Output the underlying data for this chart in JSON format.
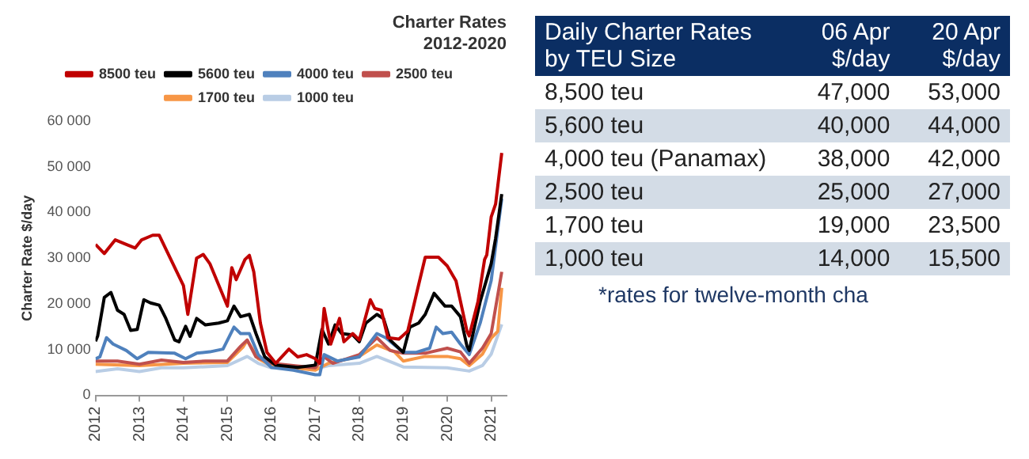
{
  "chart_data": [
    {
      "type": "line",
      "title": "Charter Rates",
      "subtitle": "2012-2020",
      "ylabel": "Charter Rate $/day",
      "xlim": [
        2012,
        2021.35
      ],
      "xticks": [
        2012,
        2013,
        2014,
        2015,
        2016,
        2017,
        2018,
        2019,
        2020,
        2021
      ],
      "ylim": [
        0,
        60000
      ],
      "yticks": [
        0,
        {
          "value": 10000,
          "label": "10 000"
        },
        {
          "value": 20000,
          "label": "20 000"
        },
        {
          "value": 30000,
          "label": "30 000"
        },
        {
          "value": 40000,
          "label": "40 000"
        },
        {
          "value": 50000,
          "label": "50 000"
        },
        {
          "value": 60000,
          "label": "60 000"
        }
      ],
      "grid": false,
      "legend": "top",
      "marker": "none",
      "line_style": "solid",
      "series": [
        {
          "name": "8500 teu",
          "color": "#c00000",
          "x": [
            2012.0,
            2012.2,
            2012.45,
            2012.7,
            2012.9,
            2013.05,
            2013.3,
            2013.45,
            2014.0,
            2014.1,
            2014.3,
            2014.45,
            2014.6,
            2015.0,
            2015.1,
            2015.2,
            2015.4,
            2015.5,
            2015.6,
            2015.75,
            2015.9,
            2016.1,
            2016.4,
            2016.6,
            2016.8,
            2017.0,
            2017.1,
            2017.2,
            2017.35,
            2017.55,
            2017.65,
            2017.85,
            2018.0,
            2018.25,
            2018.35,
            2018.5,
            2018.65,
            2018.9,
            2019.1,
            2019.35,
            2019.5,
            2019.8,
            2020.0,
            2020.2,
            2020.45,
            2020.5,
            2020.7,
            2020.85,
            2020.9,
            2021.0,
            2021.1,
            2021.24
          ],
          "values": [
            33000,
            31000,
            34000,
            33000,
            32200,
            34000,
            35000,
            35000,
            24000,
            17700,
            30000,
            30800,
            28800,
            19500,
            27900,
            25300,
            29700,
            30600,
            27000,
            15800,
            9400,
            7000,
            10100,
            8400,
            8900,
            8000,
            7000,
            19000,
            11200,
            16800,
            11700,
            13500,
            12100,
            20900,
            19000,
            18600,
            12600,
            12300,
            14000,
            24200,
            30200,
            30200,
            28300,
            25000,
            14000,
            13000,
            20500,
            29700,
            30700,
            39000,
            41800,
            53000
          ]
        },
        {
          "name": "5600 teu",
          "color": "#000000",
          "x": [
            2012.0,
            2012.05,
            2012.2,
            2012.35,
            2012.5,
            2012.65,
            2012.8,
            2012.95,
            2013.1,
            2013.25,
            2013.45,
            2013.6,
            2013.8,
            2013.9,
            2014.05,
            2014.15,
            2014.3,
            2014.5,
            2014.8,
            2015.0,
            2015.15,
            2015.3,
            2015.5,
            2015.65,
            2015.85,
            2016.1,
            2016.6,
            2017.0,
            2017.15,
            2017.3,
            2017.45,
            2017.6,
            2017.85,
            2018.0,
            2018.15,
            2018.4,
            2018.55,
            2018.7,
            2019.0,
            2019.15,
            2019.35,
            2019.5,
            2019.7,
            2019.95,
            2020.1,
            2020.3,
            2020.45,
            2020.5,
            2020.75,
            2021.0,
            2021.1,
            2021.24
          ],
          "values": [
            11800,
            13000,
            21400,
            22500,
            18600,
            17700,
            14200,
            14400,
            20900,
            20200,
            19700,
            16800,
            12100,
            11700,
            15100,
            12900,
            16800,
            15400,
            15800,
            16300,
            19500,
            17200,
            17700,
            13500,
            8400,
            6600,
            6100,
            6600,
            14400,
            11200,
            15400,
            13500,
            13200,
            11700,
            15800,
            17700,
            16800,
            12100,
            9400,
            14900,
            15800,
            17700,
            22300,
            19500,
            19500,
            17200,
            10700,
            9800,
            20500,
            28800,
            34300,
            44000
          ]
        },
        {
          "name": "4000 teu",
          "color": "#4f81bd",
          "x": [
            2012.0,
            2012.1,
            2012.25,
            2012.4,
            2012.7,
            2012.95,
            2013.2,
            2013.8,
            2014.05,
            2014.3,
            2014.6,
            2014.9,
            2015.15,
            2015.3,
            2015.5,
            2015.7,
            2016.0,
            2016.5,
            2017.0,
            2017.1,
            2017.2,
            2017.5,
            2018.0,
            2018.4,
            2018.6,
            2019.0,
            2019.3,
            2019.6,
            2019.75,
            2019.9,
            2020.1,
            2020.3,
            2020.5,
            2020.75,
            2021.0,
            2021.24
          ],
          "values": [
            8000,
            8400,
            12600,
            11200,
            9800,
            8000,
            9400,
            9200,
            8000,
            9200,
            9500,
            10100,
            14900,
            13500,
            13500,
            8900,
            6100,
            5500,
            4500,
            4500,
            8900,
            7500,
            8400,
            13500,
            12600,
            9400,
            9400,
            10300,
            14900,
            13500,
            13800,
            11200,
            8900,
            15800,
            25100,
            43000
          ]
        },
        {
          "name": "2500 teu",
          "color": "#c0504d",
          "x": [
            2012.0,
            2012.5,
            2013.0,
            2013.5,
            2014.0,
            2014.5,
            2015.0,
            2015.3,
            2015.45,
            2015.65,
            2016.0,
            2016.5,
            2017.0,
            2017.2,
            2017.4,
            2018.0,
            2018.4,
            2018.7,
            2019.0,
            2019.5,
            2020.0,
            2020.3,
            2020.5,
            2020.8,
            2021.0,
            2021.24
          ],
          "values": [
            7500,
            7500,
            6800,
            7700,
            7200,
            7500,
            7500,
            10700,
            12100,
            8400,
            7000,
            6500,
            6000,
            8400,
            7000,
            8900,
            12600,
            9800,
            9200,
            9200,
            10300,
            9500,
            7000,
            10300,
            13500,
            27000
          ]
        },
        {
          "name": "1700 teu",
          "color": "#f79646",
          "x": [
            2012.0,
            2013.0,
            2014.0,
            2015.0,
            2015.35,
            2015.45,
            2015.7,
            2016.0,
            2016.5,
            2017.0,
            2017.3,
            2018.0,
            2018.4,
            2018.8,
            2019.0,
            2019.5,
            2020.0,
            2020.3,
            2020.5,
            2020.8,
            2021.0,
            2021.15,
            2021.24
          ],
          "values": [
            6800,
            6500,
            7000,
            7200,
            10500,
            12000,
            8000,
            6500,
            6000,
            5500,
            7000,
            8500,
            11000,
            9500,
            7500,
            8500,
            8500,
            8000,
            6500,
            9000,
            12500,
            14000,
            23500
          ]
        },
        {
          "name": "1000 teu",
          "color": "#b9cde5",
          "x": [
            2012.0,
            2012.5,
            2013.0,
            2013.5,
            2014.0,
            2015.0,
            2015.45,
            2015.7,
            2016.0,
            2016.5,
            2017.0,
            2017.3,
            2018.0,
            2018.4,
            2018.8,
            2019.0,
            2020.0,
            2020.5,
            2020.8,
            2021.0,
            2021.24
          ],
          "values": [
            5200,
            5800,
            5200,
            6000,
            6000,
            6500,
            8500,
            7000,
            6000,
            6000,
            5800,
            6500,
            7000,
            8500,
            7000,
            6200,
            6000,
            5300,
            6500,
            9000,
            15500
          ]
        }
      ]
    },
    {
      "type": "other",
      "title": "Daily Charter Rates by TEU Size",
      "categories": [
        "8,500 teu",
        "5,600 teu",
        "4,000 teu (Panamax)",
        "2,500 teu",
        "1,700 teu",
        "1,000 teu"
      ],
      "data_labels": true,
      "annotations": [
        "*rates for twelve-month cha"
      ],
      "series": [
        {
          "name": "06 Apr $/day",
          "colors": [
            "#ffffff",
            "#d3dce6",
            "#ffffff",
            "#d3dce6",
            "#ffffff",
            "#d3dce6"
          ],
          "values": [
            47000,
            40000,
            38000,
            25000,
            19000,
            14000
          ],
          "value_labels": [
            "47,000",
            "40,000",
            "38,000",
            "25,000",
            "19,000",
            "14,000"
          ]
        },
        {
          "name": "20 Apr $/day",
          "colors": [
            "#ffffff",
            "#d3dce6",
            "#ffffff",
            "#d3dce6",
            "#ffffff",
            "#d3dce6"
          ],
          "values": [
            53000,
            44000,
            42000,
            27000,
            23500,
            15500
          ],
          "value_labels": [
            "53,000",
            "44,000",
            "42,000",
            "27,000",
            "23,500",
            "15,500"
          ]
        }
      ]
    }
  ]
}
